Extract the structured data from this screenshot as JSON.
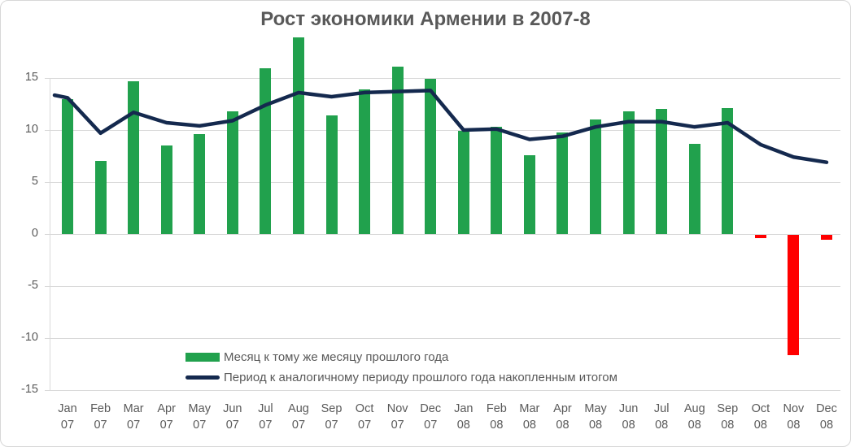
{
  "chart_data": {
    "type": "bar+line combo",
    "title": "Рост экономики Армении в 2007-8",
    "categories": [
      "Jan 07",
      "Feb 07",
      "Mar 07",
      "Apr 07",
      "May 07",
      "Jun 07",
      "Jul 07",
      "Aug 07",
      "Sep 07",
      "Oct 07",
      "Nov 07",
      "Dec 07",
      "Jan 08",
      "Feb 08",
      "Mar 08",
      "Apr 08",
      "May 08",
      "Jun 08",
      "Jul 08",
      "Aug 08",
      "Sep 08",
      "Oct 08",
      "Nov 08",
      "Dec 08"
    ],
    "series": [
      {
        "name": "Месяц к тому же месяцу прошлого года",
        "type": "bar",
        "color": "#21A14D",
        "negative_color": "#FF0000",
        "values": [
          13.0,
          7.0,
          14.7,
          8.5,
          9.6,
          11.8,
          15.9,
          18.9,
          11.4,
          13.9,
          16.1,
          14.9,
          9.9,
          10.3,
          7.6,
          9.8,
          11.0,
          11.8,
          12.0,
          8.7,
          12.1,
          -0.3,
          -11.6,
          -0.5
        ]
      },
      {
        "name": "Период к аналогичному периоду прошлого года накопленным итогом",
        "type": "line",
        "color": "#14294E",
        "values": [
          13.1,
          9.7,
          11.7,
          10.7,
          10.4,
          10.9,
          12.4,
          13.6,
          13.2,
          13.6,
          13.7,
          13.8,
          10.0,
          10.1,
          9.1,
          9.4,
          10.3,
          10.8,
          10.8,
          10.3,
          10.7,
          8.6,
          7.4,
          6.9
        ]
      }
    ],
    "yticks": [
      15,
      10,
      5,
      0,
      -5,
      -10,
      -15
    ],
    "ylim": [
      -15,
      19
    ],
    "grid": true,
    "legend_position": "inside-bottom-left"
  },
  "colors": {
    "grid": "#D9D9D9",
    "text": "#595959",
    "background": "#FFFFFF",
    "border": "#D7D7D7"
  }
}
